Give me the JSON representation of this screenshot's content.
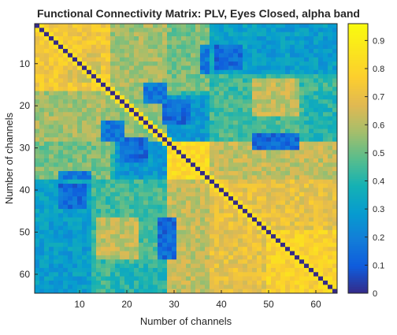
{
  "chart_data": {
    "type": "heatmap",
    "title": "Functional Connectivity Matrix: PLV, Eyes Closed, alpha band",
    "xlabel": "Number of channels",
    "ylabel": "Number of channels",
    "x_range": [
      1,
      64
    ],
    "y_range": [
      1,
      64
    ],
    "y_axis_reversed": true,
    "x_ticks": [
      10,
      20,
      30,
      40,
      50,
      60
    ],
    "y_ticks": [
      10,
      20,
      30,
      40,
      50,
      60
    ],
    "colorbar": {
      "colormap": "parula",
      "range": [
        0,
        0.96
      ],
      "ticks": [
        0,
        0.1,
        0.2,
        0.3,
        0.4,
        0.5,
        0.6,
        0.7,
        0.8,
        0.9
      ],
      "tick_labels": [
        "0",
        "0.1",
        "0.2",
        "0.3",
        "0.4",
        "0.5",
        "0.6",
        "0.7",
        "0.8",
        "0.9"
      ]
    },
    "matrix_size": 64,
    "diagonal_value": 0,
    "symmetric": true,
    "base_value": 0.44,
    "blocks": [
      {
        "rows": [
          1,
          16
        ],
        "cols": [
          1,
          16
        ],
        "value": 0.74
      },
      {
        "rows": [
          8,
          14
        ],
        "cols": [
          8,
          14
        ],
        "value": 0.66
      },
      {
        "rows": [
          17,
          28
        ],
        "cols": [
          17,
          28
        ],
        "value": 0.55
      },
      {
        "rows": [
          29,
          37
        ],
        "cols": [
          29,
          37
        ],
        "value": 0.82
      },
      {
        "rows": [
          38,
          64
        ],
        "cols": [
          38,
          64
        ],
        "value": 0.7
      },
      {
        "rows": [
          50,
          64
        ],
        "cols": [
          50,
          64
        ],
        "value": 0.78
      },
      {
        "rows": [
          1,
          16
        ],
        "cols": [
          17,
          28
        ],
        "value": 0.58
      },
      {
        "rows": [
          1,
          16
        ],
        "cols": [
          29,
          37
        ],
        "value": 0.52
      },
      {
        "rows": [
          1,
          12
        ],
        "cols": [
          38,
          48
        ],
        "value": 0.56
      },
      {
        "rows": [
          6,
          12
        ],
        "cols": [
          36,
          42
        ],
        "value": 0.18
      },
      {
        "rows": [
          8,
          12
        ],
        "cols": [
          47,
          52
        ],
        "value": 0.15
      },
      {
        "rows": [
          18,
          28
        ],
        "cols": [
          29,
          37
        ],
        "value": 0.28
      },
      {
        "rows": [
          19,
          24
        ],
        "cols": [
          28,
          33
        ],
        "value": 0.14
      },
      {
        "rows": [
          17,
          28
        ],
        "cols": [
          40,
          64
        ],
        "value": 0.46
      },
      {
        "rows": [
          29,
          37
        ],
        "cols": [
          38,
          64
        ],
        "value": 0.62
      },
      {
        "rows": [
          38,
          49
        ],
        "cols": [
          1,
          12
        ],
        "value": 0.32
      },
      {
        "rows": [
          39,
          44
        ],
        "cols": [
          6,
          11
        ],
        "value": 0.14
      },
      {
        "rows": [
          48,
          64
        ],
        "cols": [
          1,
          12
        ],
        "value": 0.3
      },
      {
        "rows": [
          47,
          56
        ],
        "cols": [
          14,
          22
        ],
        "value": 0.62
      },
      {
        "rows": [
          47,
          56
        ],
        "cols": [
          27,
          30
        ],
        "value": 0.14
      },
      {
        "rows": [
          58,
          64
        ],
        "cols": [
          17,
          28
        ],
        "value": 0.4
      },
      {
        "rows": [
          24,
          28
        ],
        "cols": [
          15,
          19
        ],
        "value": 0.18
      }
    ]
  }
}
